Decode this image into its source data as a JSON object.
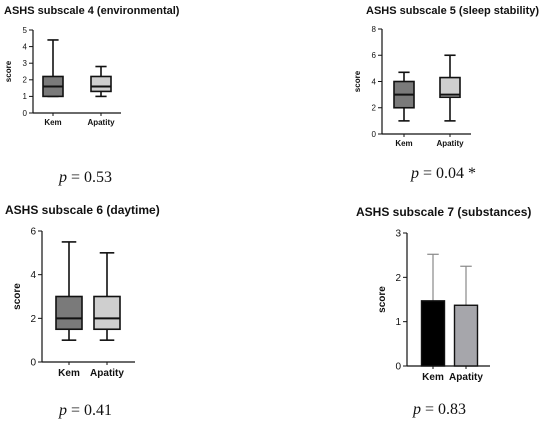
{
  "chart_data": [
    {
      "type": "box",
      "title": "ASHS subscale 4 (environmental)",
      "ylabel": "score",
      "ylim": [
        0,
        5
      ],
      "yticks": [
        0,
        1,
        2,
        3,
        4,
        5
      ],
      "categories": [
        "Kem",
        "Apatity"
      ],
      "boxes": [
        {
          "name": "Kem",
          "min": 1.0,
          "q1": 1.0,
          "median": 1.6,
          "q3": 2.2,
          "max": 4.4,
          "color": "#7a7a7a"
        },
        {
          "name": "Apatity",
          "min": 1.0,
          "q1": 1.3,
          "median": 1.6,
          "q3": 2.2,
          "max": 2.8,
          "color": "#cfcfcf"
        }
      ],
      "p_label": "p",
      "p_value": "= 0.53"
    },
    {
      "type": "box",
      "title": "ASHS subscale 5 (sleep stability)",
      "ylabel": "score",
      "ylim": [
        0,
        8
      ],
      "yticks": [
        0,
        2,
        4,
        6,
        8
      ],
      "categories": [
        "Kem",
        "Apatity"
      ],
      "boxes": [
        {
          "name": "Kem",
          "min": 1.0,
          "q1": 2.0,
          "median": 3.0,
          "q3": 4.0,
          "max": 4.7,
          "color": "#7a7a7a"
        },
        {
          "name": "Apatity",
          "min": 1.0,
          "q1": 2.8,
          "median": 3.0,
          "q3": 4.3,
          "max": 6.0,
          "color": "#cfcfcf"
        }
      ],
      "p_label": "p",
      "p_value": "= 0.04 *"
    },
    {
      "type": "box",
      "title": "ASHS subscale 6 (daytime)",
      "ylabel": "score",
      "ylim": [
        0,
        6
      ],
      "yticks": [
        0,
        2,
        4,
        6
      ],
      "categories": [
        "Kem",
        "Apatity"
      ],
      "boxes": [
        {
          "name": "Kem",
          "min": 1.0,
          "q1": 1.5,
          "median": 2.0,
          "q3": 3.0,
          "max": 5.5,
          "color": "#7a7a7a"
        },
        {
          "name": "Apatity",
          "min": 1.0,
          "q1": 1.5,
          "median": 2.0,
          "q3": 3.0,
          "max": 5.0,
          "color": "#cfcfcf"
        }
      ],
      "p_label": "p",
      "p_value": "= 0.41"
    },
    {
      "type": "bar",
      "title": "ASHS subscale 7 (substances)",
      "ylabel": "score",
      "ylim": [
        0,
        3
      ],
      "yticks": [
        0,
        1,
        2,
        3
      ],
      "categories": [
        "Kem",
        "Apatity"
      ],
      "bars": [
        {
          "name": "Kem",
          "value": 1.47,
          "error": 1.05,
          "color": "#000000"
        },
        {
          "name": "Apatity",
          "value": 1.37,
          "error": 0.88,
          "color": "#a6a6ab"
        }
      ],
      "p_label": "p",
      "p_value": "= 0.83"
    }
  ]
}
